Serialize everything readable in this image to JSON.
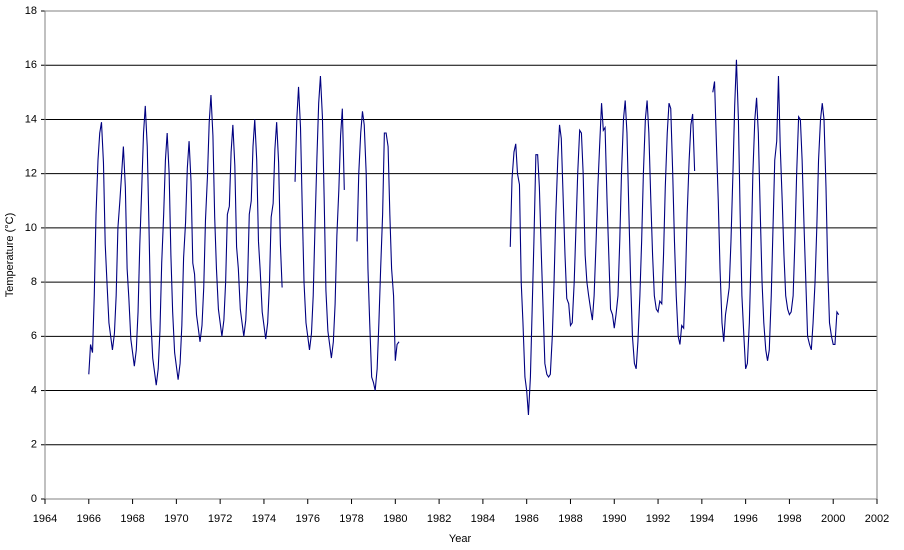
{
  "chart_data": {
    "type": "line",
    "x_label": "Year",
    "y_label": "Temperature (°C)",
    "xlim": [
      1964,
      2002
    ],
    "xticks": [
      1964,
      1966,
      1968,
      1970,
      1972,
      1974,
      1976,
      1978,
      1980,
      1982,
      1984,
      1986,
      1988,
      1990,
      1992,
      1994,
      1996,
      1998,
      2000,
      2002
    ],
    "ylim": [
      0,
      18
    ],
    "yticks": [
      0,
      2,
      4,
      6,
      8,
      10,
      12,
      14,
      16,
      18
    ],
    "grid": true,
    "series": [
      {
        "color": "#000080",
        "x": [
          1966,
          1966.08,
          1966.17,
          1966.25,
          1966.33,
          1966.42,
          1966.5,
          1966.58,
          1966.67,
          1966.75,
          1966.83,
          1966.92,
          1967,
          1967.08,
          1967.17,
          1967.25,
          1967.33,
          1967.42,
          1967.5,
          1967.58,
          1967.67,
          1967.75,
          1967.83,
          1967.92,
          1968,
          1968.08,
          1968.17,
          1968.25,
          1968.33,
          1968.42,
          1968.5,
          1968.58,
          1968.67,
          1968.75,
          1968.83,
          1968.92,
          1969,
          1969.08,
          1969.17,
          1969.25,
          1969.33,
          1969.42,
          1969.5,
          1969.58,
          1969.67,
          1969.75,
          1969.83,
          1969.92,
          1970,
          1970.08,
          1970.17,
          1970.25,
          1970.33,
          1970.42,
          1970.5,
          1970.58,
          1970.67,
          1970.75,
          1970.83,
          1970.92,
          1971,
          1971.08,
          1971.17,
          1971.25,
          1971.33,
          1971.42,
          1971.5,
          1971.58,
          1971.67,
          1971.75,
          1971.83,
          1971.92,
          1972,
          1972.08,
          1972.17,
          1972.25,
          1972.33,
          1972.42,
          1972.5,
          1972.58,
          1972.67,
          1972.75,
          1972.83,
          1972.92,
          1973,
          1973.08,
          1973.17,
          1973.25,
          1973.33,
          1973.42,
          1973.5,
          1973.58,
          1973.67,
          1973.75,
          1973.83,
          1973.92,
          1974,
          1974.08,
          1974.17,
          1974.25,
          1974.33,
          1974.42,
          1974.5,
          1974.58,
          1974.67,
          1974.75,
          1974.83,
          1974.92,
          1975.42,
          1975.5,
          1975.58,
          1975.67,
          1975.75,
          1975.83,
          1975.92,
          1976,
          1976.08,
          1976.17,
          1976.25,
          1976.33,
          1976.42,
          1976.5,
          1976.58,
          1976.67,
          1976.75,
          1976.83,
          1976.92,
          1977,
          1977.08,
          1977.17,
          1977.25,
          1977.33,
          1977.42,
          1977.5,
          1977.58,
          1977.67,
          1977.75,
          1978.25,
          1978.33,
          1978.42,
          1978.5,
          1978.58,
          1978.67,
          1978.75,
          1978.83,
          1978.92,
          1979,
          1979.08,
          1979.17,
          1979.25,
          1979.33,
          1979.42,
          1979.5,
          1979.58,
          1979.67,
          1979.75,
          1979.83,
          1979.92,
          1980,
          1980.08,
          1980.17,
          1982.5,
          1985.25,
          1985.33,
          1985.42,
          1985.5,
          1985.58,
          1985.67,
          1985.75,
          1985.83,
          1985.92,
          1986,
          1986.08,
          1986.17,
          1986.25,
          1986.33,
          1986.42,
          1986.5,
          1986.58,
          1986.67,
          1986.75,
          1986.83,
          1986.92,
          1987,
          1987.08,
          1987.17,
          1987.25,
          1987.33,
          1987.42,
          1987.5,
          1987.58,
          1987.67,
          1987.75,
          1987.83,
          1987.92,
          1988,
          1988.08,
          1988.17,
          1988.25,
          1988.33,
          1988.42,
          1988.5,
          1988.58,
          1988.67,
          1988.75,
          1988.83,
          1988.92,
          1989,
          1989.08,
          1989.17,
          1989.25,
          1989.33,
          1989.42,
          1989.5,
          1989.58,
          1989.67,
          1989.75,
          1989.83,
          1989.92,
          1990,
          1990.08,
          1990.17,
          1990.25,
          1990.33,
          1990.42,
          1990.5,
          1990.58,
          1990.67,
          1990.75,
          1990.83,
          1990.92,
          1991,
          1991.08,
          1991.17,
          1991.25,
          1991.33,
          1991.42,
          1991.5,
          1991.58,
          1991.67,
          1991.75,
          1991.83,
          1991.92,
          1992,
          1992.08,
          1992.17,
          1992.25,
          1992.33,
          1992.42,
          1992.5,
          1992.58,
          1992.67,
          1992.75,
          1992.83,
          1992.92,
          1993,
          1993.08,
          1993.17,
          1993.25,
          1993.33,
          1993.42,
          1993.5,
          1993.58,
          1993.67,
          1993.75,
          1994.5,
          1994.58,
          1994.67,
          1994.75,
          1994.83,
          1994.92,
          1995,
          1995.08,
          1995.17,
          1995.25,
          1995.33,
          1995.42,
          1995.5,
          1995.58,
          1995.67,
          1995.75,
          1995.83,
          1995.92,
          1996,
          1996.08,
          1996.17,
          1996.25,
          1996.33,
          1996.42,
          1996.5,
          1996.58,
          1996.67,
          1996.75,
          1996.83,
          1996.92,
          1997,
          1997.08,
          1997.17,
          1997.25,
          1997.33,
          1997.42,
          1997.5,
          1997.58,
          1997.67,
          1997.75,
          1997.83,
          1997.92,
          1998,
          1998.08,
          1998.17,
          1998.25,
          1998.33,
          1998.42,
          1998.5,
          1998.58,
          1998.67,
          1998.75,
          1998.83,
          1998.92,
          1999,
          1999.08,
          1999.17,
          1999.25,
          1999.33,
          1999.42,
          1999.5,
          1999.58,
          1999.67,
          1999.75,
          1999.83,
          1999.92,
          2000,
          2000.08,
          2000.17,
          2000.25
        ],
        "values": [
          4.6,
          5.7,
          5.4,
          7.5,
          10.5,
          12.5,
          13.5,
          13.9,
          12.4,
          9.4,
          8.0,
          6.5,
          6.0,
          5.5,
          6.1,
          7.5,
          10.0,
          11.0,
          12.0,
          13.0,
          11.5,
          8.5,
          7.4,
          5.9,
          5.4,
          4.9,
          5.5,
          6.9,
          9.4,
          11.5,
          13.5,
          14.5,
          13.0,
          10.0,
          6.7,
          5.2,
          4.7,
          4.2,
          4.8,
          6.2,
          8.7,
          10.5,
          12.5,
          13.5,
          12.0,
          9.0,
          6.9,
          5.4,
          4.9,
          4.4,
          5.0,
          6.4,
          8.9,
          10.2,
          12.2,
          13.2,
          11.7,
          8.7,
          8.3,
          6.8,
          6.3,
          5.8,
          6.4,
          7.8,
          10.3,
          11.9,
          13.9,
          14.9,
          13.4,
          10.4,
          8.5,
          7.0,
          6.5,
          6.0,
          6.6,
          8.0,
          10.5,
          10.8,
          12.8,
          13.8,
          12.3,
          9.3,
          8.5,
          7.0,
          6.5,
          6.0,
          6.6,
          8.0,
          10.5,
          11.0,
          13.0,
          14.0,
          12.5,
          9.5,
          8.4,
          6.9,
          6.4,
          5.9,
          6.5,
          7.9,
          10.4,
          10.9,
          12.9,
          13.9,
          12.4,
          9.4,
          7.8,
          null,
          11.7,
          14.0,
          15.2,
          13.7,
          10.7,
          8.0,
          6.5,
          6.0,
          5.5,
          6.1,
          7.5,
          10.0,
          12.6,
          14.6,
          15.6,
          14.1,
          11.1,
          7.7,
          6.2,
          5.7,
          5.2,
          5.8,
          7.2,
          9.7,
          11.4,
          13.4,
          14.4,
          11.4,
          null,
          9.5,
          12.0,
          13.5,
          14.3,
          13.8,
          12.0,
          8.5,
          6.5,
          4.5,
          4.3,
          4.0,
          4.8,
          6.5,
          8.5,
          10.5,
          13.5,
          13.5,
          13.0,
          10.5,
          8.5,
          7.5,
          5.1,
          5.7,
          5.8,
          null,
          9.3,
          11.8,
          12.8,
          13.1,
          12.0,
          11.6,
          8.0,
          6.5,
          4.5,
          4.0,
          3.1,
          4.5,
          7.0,
          9.5,
          12.7,
          12.7,
          11.5,
          9.0,
          7.0,
          5.0,
          4.6,
          4.5,
          4.6,
          6.0,
          8.0,
          10.5,
          12.5,
          13.8,
          13.3,
          11.0,
          9.0,
          7.4,
          7.2,
          6.4,
          6.5,
          8.0,
          10.0,
          12.0,
          13.6,
          13.5,
          12.0,
          9.0,
          8.0,
          7.5,
          7.0,
          6.6,
          7.5,
          9.5,
          11.5,
          13.0,
          14.6,
          13.6,
          13.7,
          11.0,
          9.0,
          7.0,
          6.8,
          6.3,
          6.8,
          7.5,
          9.5,
          12.0,
          14.0,
          14.7,
          13.5,
          10.5,
          8.0,
          6.0,
          5.0,
          4.8,
          5.8,
          7.5,
          9.5,
          12.0,
          14.0,
          14.7,
          13.5,
          11.0,
          9.0,
          7.5,
          7.0,
          6.9,
          7.3,
          7.2,
          9.0,
          11.5,
          13.5,
          14.6,
          14.4,
          12.0,
          9.5,
          7.5,
          6.0,
          5.7,
          6.4,
          6.3,
          8.0,
          10.5,
          12.5,
          13.8,
          14.2,
          12.1,
          null,
          15.0,
          15.4,
          13.0,
          11.0,
          8.5,
          6.5,
          5.8,
          6.8,
          7.3,
          7.8,
          9.5,
          12.0,
          14.5,
          16.2,
          14.0,
          10.5,
          7.5,
          6.0,
          4.8,
          5.0,
          6.5,
          9.0,
          12.0,
          14.0,
          14.8,
          13.5,
          10.5,
          8.0,
          6.5,
          5.5,
          5.1,
          5.5,
          7.5,
          10.0,
          12.5,
          13.2,
          15.6,
          13.0,
          11.0,
          9.0,
          7.5,
          7.0,
          6.8,
          6.9,
          7.5,
          9.5,
          12.0,
          14.1,
          14.0,
          12.5,
          10.0,
          8.0,
          6.0,
          5.7,
          5.5,
          6.5,
          8.0,
          10.0,
          12.5,
          14.0,
          14.6,
          14.0,
          11.5,
          8.5,
          6.5,
          6.0,
          5.7,
          5.7,
          6.9,
          6.8
        ]
      }
    ]
  }
}
